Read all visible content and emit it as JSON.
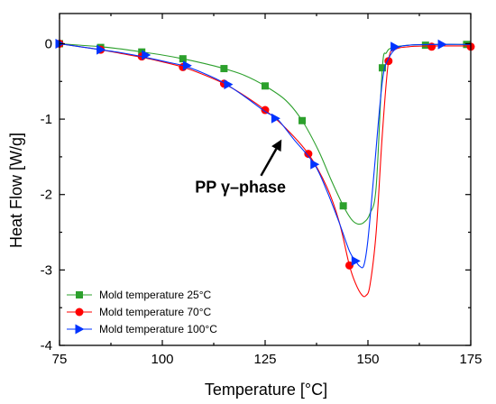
{
  "chart_data": {
    "type": "line",
    "xlabel": "Temperature [°C]",
    "ylabel": "Heat Flow [W/g]",
    "xlim": [
      75,
      175
    ],
    "ylim": [
      -4,
      0.4
    ],
    "xticks": [
      75,
      100,
      125,
      150,
      175
    ],
    "yticks": [
      0,
      -1,
      -2,
      -3,
      -4
    ],
    "legend_position": "bottom-left",
    "annotation": {
      "text": "PP γ–phase",
      "arrow_tip": [
        129,
        -1.27
      ],
      "arrow_tail": [
        124,
        -1.75
      ],
      "text_anchor": [
        119,
        -1.9
      ]
    },
    "series": [
      {
        "name": "Mold temperature 25°C",
        "color": "#2ca02c",
        "marker": "square",
        "curve": [
          [
            75,
            0
          ],
          [
            80,
            -0.02
          ],
          [
            85,
            -0.04
          ],
          [
            90,
            -0.07
          ],
          [
            95,
            -0.11
          ],
          [
            100,
            -0.15
          ],
          [
            105,
            -0.2
          ],
          [
            110,
            -0.26
          ],
          [
            115,
            -0.33
          ],
          [
            120,
            -0.42
          ],
          [
            125,
            -0.56
          ],
          [
            130,
            -0.75
          ],
          [
            134,
            -1.02
          ],
          [
            138,
            -1.42
          ],
          [
            141,
            -1.8
          ],
          [
            144,
            -2.15
          ],
          [
            146,
            -2.33
          ],
          [
            147.5,
            -2.39
          ],
          [
            149,
            -2.37
          ],
          [
            150.5,
            -2.25
          ],
          [
            152,
            -1.9
          ],
          [
            153.5,
            -0.32
          ],
          [
            154.5,
            -0.12
          ],
          [
            156,
            -0.05
          ],
          [
            160,
            -0.02
          ],
          [
            165,
            -0.01
          ],
          [
            175,
            -0.01
          ]
        ],
        "markers": [
          [
            75,
            0
          ],
          [
            85,
            -0.05
          ],
          [
            95,
            -0.11
          ],
          [
            105,
            -0.2
          ],
          [
            115,
            -0.33
          ],
          [
            125,
            -0.56
          ],
          [
            134,
            -1.02
          ],
          [
            144,
            -2.15
          ],
          [
            153.5,
            -0.32
          ],
          [
            164,
            -0.02
          ],
          [
            174,
            -0.01
          ]
        ]
      },
      {
        "name": "Mold temperature 70°C",
        "color": "#ff0000",
        "marker": "circle",
        "curve": [
          [
            75,
            0
          ],
          [
            80,
            -0.04
          ],
          [
            85,
            -0.08
          ],
          [
            90,
            -0.13
          ],
          [
            95,
            -0.18
          ],
          [
            100,
            -0.24
          ],
          [
            105,
            -0.31
          ],
          [
            110,
            -0.41
          ],
          [
            115,
            -0.53
          ],
          [
            120,
            -0.69
          ],
          [
            125,
            -0.88
          ],
          [
            130,
            -1.12
          ],
          [
            135.5,
            -1.46
          ],
          [
            140,
            -1.9
          ],
          [
            143,
            -2.36
          ],
          [
            145.5,
            -2.94
          ],
          [
            147,
            -3.18
          ],
          [
            148.5,
            -3.33
          ],
          [
            149.5,
            -3.34
          ],
          [
            150.5,
            -3.2
          ],
          [
            152,
            -2.5
          ],
          [
            153.5,
            -1.2
          ],
          [
            155,
            -0.23
          ],
          [
            156.5,
            -0.08
          ],
          [
            160,
            -0.04
          ],
          [
            165,
            -0.03
          ],
          [
            175,
            -0.03
          ]
        ],
        "markers": [
          [
            75,
            0
          ],
          [
            85,
            -0.08
          ],
          [
            95,
            -0.17
          ],
          [
            105,
            -0.31
          ],
          [
            115,
            -0.53
          ],
          [
            125,
            -0.88
          ],
          [
            135.5,
            -1.46
          ],
          [
            145.5,
            -2.94
          ],
          [
            155,
            -0.23
          ],
          [
            165.5,
            -0.04
          ],
          [
            175,
            -0.04
          ]
        ]
      },
      {
        "name": "Mold temperature 100°C",
        "color": "#0033ff",
        "marker": "triangle-right",
        "curve": [
          [
            75,
            0
          ],
          [
            80,
            -0.04
          ],
          [
            85,
            -0.08
          ],
          [
            90,
            -0.12
          ],
          [
            95,
            -0.17
          ],
          [
            100,
            -0.23
          ],
          [
            105,
            -0.29
          ],
          [
            110,
            -0.39
          ],
          [
            115,
            -0.52
          ],
          [
            120,
            -0.7
          ],
          [
            125,
            -0.9
          ],
          [
            128,
            -1.0
          ],
          [
            132,
            -1.27
          ],
          [
            137,
            -1.6
          ],
          [
            140,
            -1.95
          ],
          [
            143,
            -2.37
          ],
          [
            145.5,
            -2.75
          ],
          [
            147,
            -2.88
          ],
          [
            148,
            -2.95
          ],
          [
            149,
            -2.94
          ],
          [
            150,
            -2.6
          ],
          [
            151.5,
            -1.7
          ],
          [
            153.5,
            -0.5
          ],
          [
            155,
            -0.2
          ],
          [
            157,
            -0.06
          ],
          [
            160,
            -0.02
          ],
          [
            167,
            -0.01
          ],
          [
            175,
            -0.01
          ]
        ],
        "markers": [
          [
            75,
            0
          ],
          [
            85,
            -0.08
          ],
          [
            96,
            -0.15
          ],
          [
            106,
            -0.29
          ],
          [
            116,
            -0.54
          ],
          [
            127.5,
            -0.99
          ],
          [
            137,
            -1.6
          ],
          [
            147,
            -2.88
          ],
          [
            156.5,
            -0.04
          ],
          [
            168,
            -0.01
          ]
        ]
      }
    ]
  }
}
